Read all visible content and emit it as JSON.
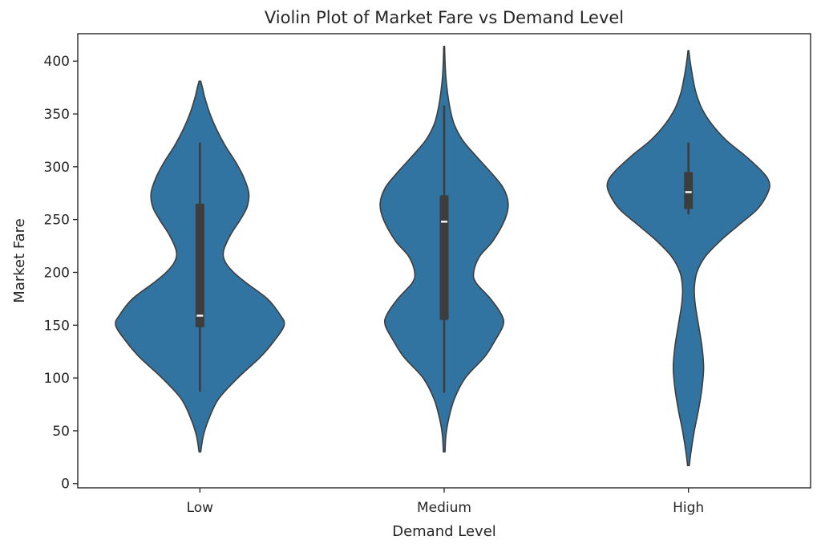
{
  "chart_data": {
    "type": "violin",
    "title": "Violin Plot of Market Fare vs Demand Level",
    "xlabel": "Demand Level",
    "ylabel": "Market Fare",
    "categories": [
      "Low",
      "Medium",
      "High"
    ],
    "ylim": [
      -4,
      426
    ],
    "yticks": [
      0,
      50,
      100,
      150,
      200,
      250,
      300,
      350,
      400
    ],
    "grid": false,
    "fill_color": "#3274a1",
    "line_color": "#3d3d3d",
    "violins": [
      {
        "category": "Low",
        "min": 87,
        "q1": 148,
        "median": 159,
        "q3": 265,
        "max": 323,
        "extent": [
          30,
          381
        ],
        "density": [
          [
            30,
            0.01
          ],
          [
            45,
            0.04
          ],
          [
            60,
            0.1
          ],
          [
            80,
            0.22
          ],
          [
            100,
            0.45
          ],
          [
            120,
            0.72
          ],
          [
            135,
            0.88
          ],
          [
            150,
            1.0
          ],
          [
            160,
            0.95
          ],
          [
            175,
            0.8
          ],
          [
            190,
            0.55
          ],
          [
            200,
            0.4
          ],
          [
            210,
            0.3
          ],
          [
            220,
            0.28
          ],
          [
            235,
            0.36
          ],
          [
            250,
            0.48
          ],
          [
            262,
            0.56
          ],
          [
            275,
            0.58
          ],
          [
            290,
            0.52
          ],
          [
            305,
            0.42
          ],
          [
            320,
            0.3
          ],
          [
            335,
            0.2
          ],
          [
            350,
            0.12
          ],
          [
            365,
            0.06
          ],
          [
            375,
            0.03
          ],
          [
            381,
            0.01
          ]
        ]
      },
      {
        "category": "Medium",
        "min": 86,
        "q1": 155,
        "median": 248,
        "q3": 273,
        "max": 358,
        "extent": [
          30,
          414
        ],
        "density": [
          [
            30,
            0.01
          ],
          [
            45,
            0.02
          ],
          [
            60,
            0.05
          ],
          [
            80,
            0.12
          ],
          [
            100,
            0.25
          ],
          [
            120,
            0.48
          ],
          [
            135,
            0.6
          ],
          [
            150,
            0.7
          ],
          [
            160,
            0.68
          ],
          [
            175,
            0.55
          ],
          [
            190,
            0.38
          ],
          [
            200,
            0.35
          ],
          [
            215,
            0.42
          ],
          [
            230,
            0.58
          ],
          [
            250,
            0.72
          ],
          [
            265,
            0.76
          ],
          [
            280,
            0.7
          ],
          [
            295,
            0.55
          ],
          [
            310,
            0.38
          ],
          [
            325,
            0.22
          ],
          [
            340,
            0.12
          ],
          [
            355,
            0.07
          ],
          [
            370,
            0.04
          ],
          [
            385,
            0.02
          ],
          [
            400,
            0.01
          ],
          [
            414,
            0.005
          ]
        ]
      },
      {
        "category": "High",
        "min": 255,
        "q1": 260,
        "median": 276,
        "q3": 295,
        "max": 323,
        "extent": [
          17,
          410
        ],
        "density": [
          [
            17,
            0.01
          ],
          [
            30,
            0.03
          ],
          [
            50,
            0.07
          ],
          [
            70,
            0.12
          ],
          [
            90,
            0.16
          ],
          [
            110,
            0.18
          ],
          [
            130,
            0.16
          ],
          [
            150,
            0.12
          ],
          [
            170,
            0.08
          ],
          [
            185,
            0.07
          ],
          [
            200,
            0.1
          ],
          [
            215,
            0.2
          ],
          [
            230,
            0.38
          ],
          [
            245,
            0.6
          ],
          [
            260,
            0.82
          ],
          [
            275,
            0.94
          ],
          [
            285,
            0.96
          ],
          [
            295,
            0.88
          ],
          [
            310,
            0.68
          ],
          [
            325,
            0.45
          ],
          [
            340,
            0.28
          ],
          [
            355,
            0.16
          ],
          [
            370,
            0.09
          ],
          [
            385,
            0.05
          ],
          [
            400,
            0.02
          ],
          [
            410,
            0.005
          ]
        ]
      }
    ]
  }
}
